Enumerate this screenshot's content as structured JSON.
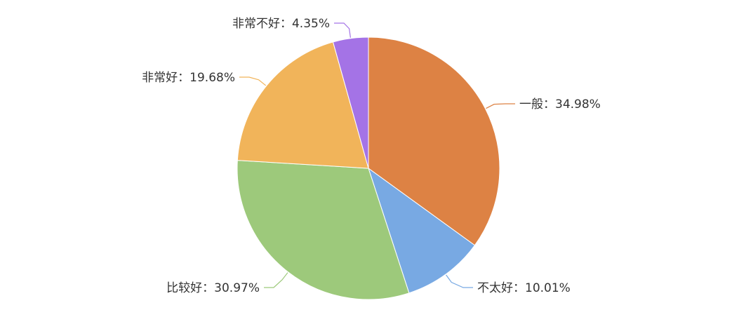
{
  "chart_data": {
    "type": "pie",
    "slices": [
      {
        "label": "一般",
        "value": 34.98,
        "color": "#DD8244"
      },
      {
        "label": "不太好",
        "value": 10.01,
        "color": "#78A9E3"
      },
      {
        "label": "比较好",
        "value": 30.97,
        "color": "#9DC97B"
      },
      {
        "label": "非常好",
        "value": 19.68,
        "color": "#F1B45A"
      },
      {
        "label": "非常不好",
        "value": 4.35,
        "color": "#A473E6"
      }
    ],
    "label_format": "name：percent",
    "title": ""
  }
}
